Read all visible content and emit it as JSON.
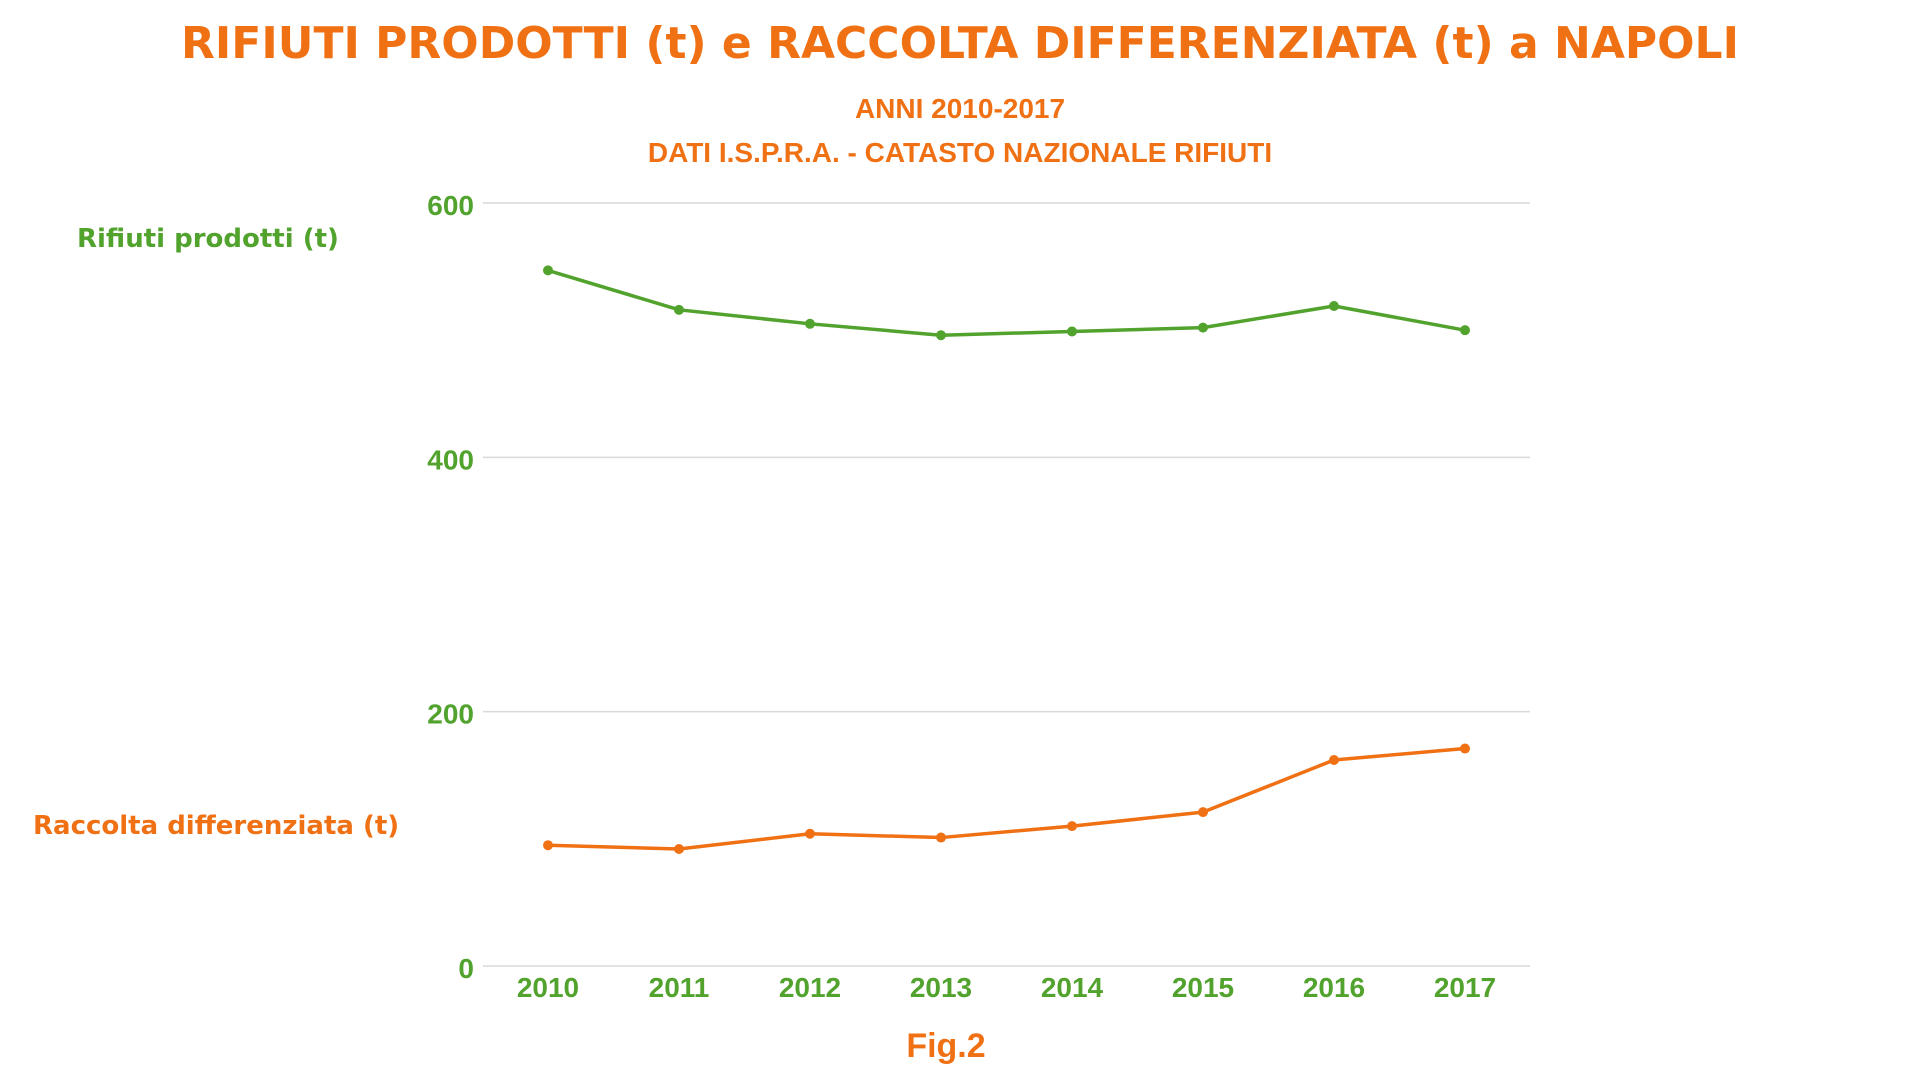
{
  "title": "RIFIUTI PRODOTTI (t) e RACCOLTA DIFFERENZIATA (t) a NAPOLI",
  "subtitle_line1": "ANNI 2010-2017",
  "subtitle_line2": "DATI I.S.P.R.A. - CATASTO NAZIONALE RIFIUTI",
  "caption": "Fig.2",
  "colors": {
    "green": "#52a32e",
    "orange": "#f07014",
    "grid": "#d9d9d9"
  },
  "chart_data": {
    "type": "line",
    "title": "RIFIUTI PRODOTTI (t) e RACCOLTA DIFFERENZIATA (t) a NAPOLI",
    "subtitle": "ANNI 2010-2017 — DATI I.S.P.R.A. - CATASTO NAZIONALE RIFIUTI",
    "x": [
      "2010",
      "2011",
      "2012",
      "2013",
      "2014",
      "2015",
      "2016",
      "2017"
    ],
    "ylim": [
      0,
      600
    ],
    "yticks": [
      "0",
      "200",
      "400",
      "600"
    ],
    "grid": true,
    "legend": "inline-left",
    "series": [
      {
        "name": "Rifiuti prodotti (t)",
        "color": "#52a32e",
        "values": [
          547,
          516,
          505,
          496,
          499,
          502,
          519,
          500
        ]
      },
      {
        "name": "Raccolta differenziata (t)",
        "color": "#f07014",
        "values": [
          95,
          92,
          104,
          101,
          110,
          121,
          162,
          171
        ]
      }
    ]
  }
}
